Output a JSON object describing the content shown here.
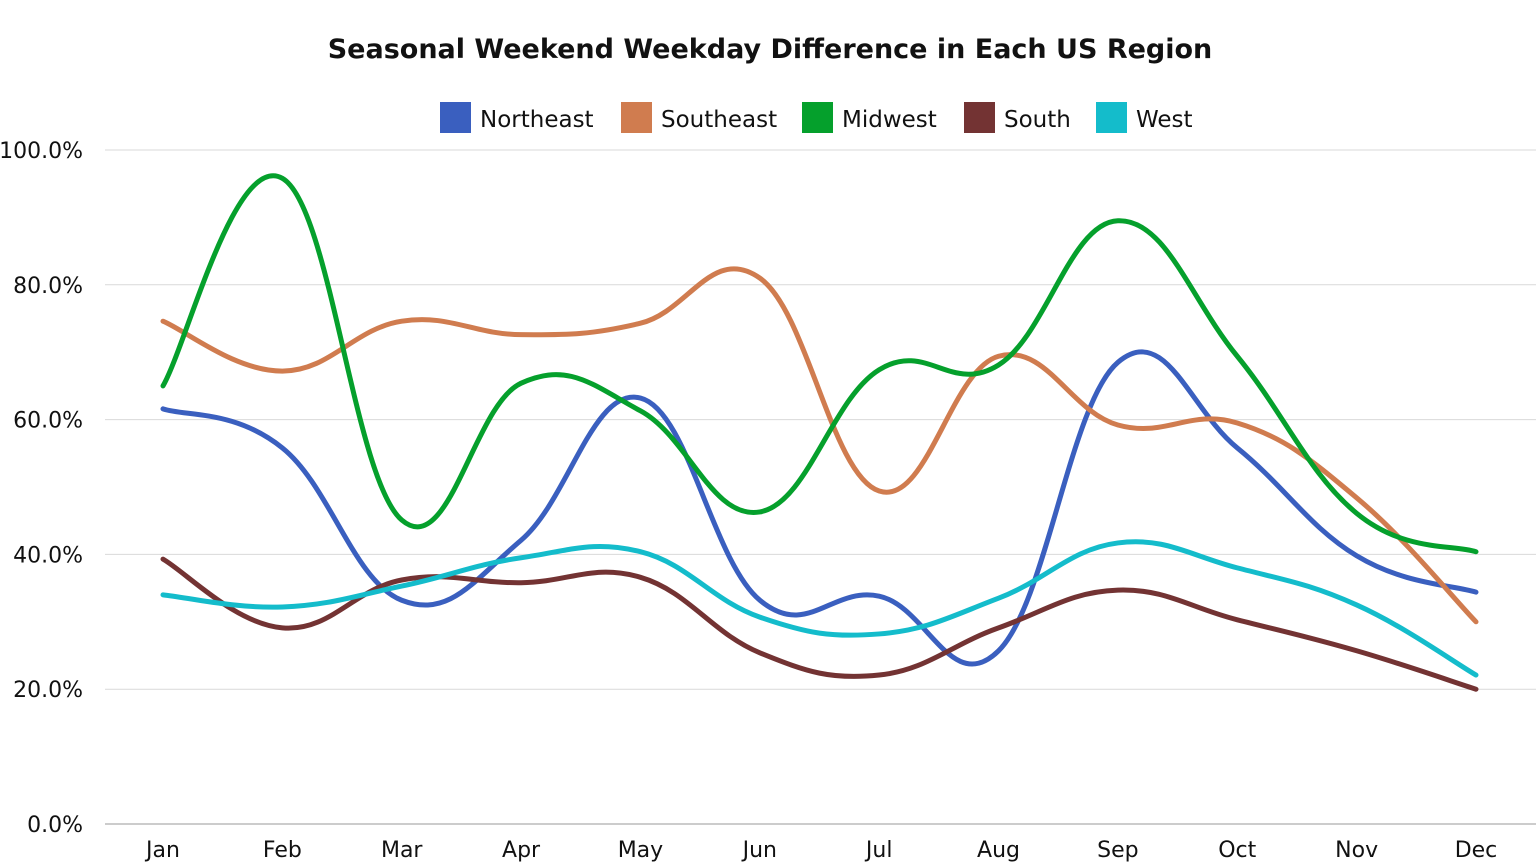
{
  "chart_data": {
    "type": "line",
    "title": "Seasonal Weekend Weekday Difference in Each US Region",
    "xlabel": "",
    "ylabel": "",
    "categories": [
      "Jan",
      "Feb",
      "Mar",
      "Apr",
      "May",
      "Jun",
      "Jul",
      "Aug",
      "Sep",
      "Oct",
      "Nov",
      "Dec"
    ],
    "ylim": [
      0,
      100
    ],
    "yticks": [
      0,
      20,
      40,
      60,
      80,
      100
    ],
    "ytick_labels": [
      "0.0%",
      "20.0%",
      "40.0%",
      "60.0%",
      "80.0%",
      "100.0%"
    ],
    "y_unit": "%",
    "grid": "horizontal",
    "legend_position": "top-center",
    "smooth": true,
    "series": [
      {
        "name": "Northeast",
        "color": "#3a5fbf",
        "values": [
          61.6,
          55.8,
          33.2,
          42.1,
          63.2,
          33.2,
          33.8,
          25.7,
          68.5,
          55.8,
          39.8,
          34.4
        ]
      },
      {
        "name": "Southeast",
        "color": "#d07c4f",
        "values": [
          74.6,
          67.2,
          74.6,
          72.6,
          74.3,
          81.0,
          49.4,
          69.4,
          59.2,
          59.5,
          48.4,
          30.0
        ]
      },
      {
        "name": "Midwest",
        "color": "#05a02c",
        "values": [
          65.0,
          95.8,
          45.1,
          65.4,
          61.3,
          46.3,
          67.4,
          68.1,
          89.5,
          69.4,
          46.1,
          40.4
        ]
      },
      {
        "name": "South",
        "color": "#733333",
        "values": [
          39.3,
          29.1,
          36.2,
          35.8,
          36.6,
          25.4,
          22.1,
          29.1,
          34.7,
          30.3,
          25.7,
          20.0
        ]
      },
      {
        "name": "West",
        "color": "#14bccb",
        "values": [
          34.0,
          32.2,
          35.3,
          39.5,
          40.4,
          30.7,
          28.2,
          33.5,
          41.7,
          38.0,
          32.5,
          22.1
        ]
      }
    ]
  }
}
